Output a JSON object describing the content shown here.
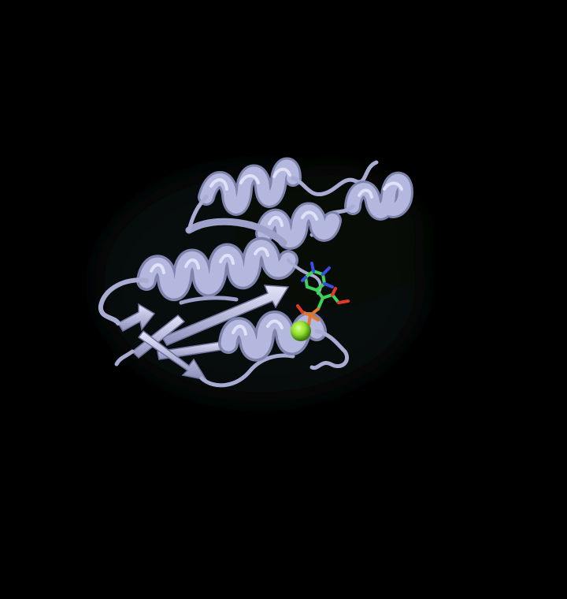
{
  "image": {
    "description_type": "protein-cartoon-render",
    "colors": {
      "background": "#000000",
      "ribbon": "#b4b8de",
      "ribbon_shadow": "#7f84ad",
      "ribbon_highlight": "#dfe1f7",
      "ligand_carbon": "#3fd05a",
      "ligand_nitrogen": "#3a4fe0",
      "ligand_oxygen": "#e23a2a",
      "phosphate": "#e0772c",
      "metal_ion": "#8fe02a",
      "haze": "#0e1514"
    }
  }
}
